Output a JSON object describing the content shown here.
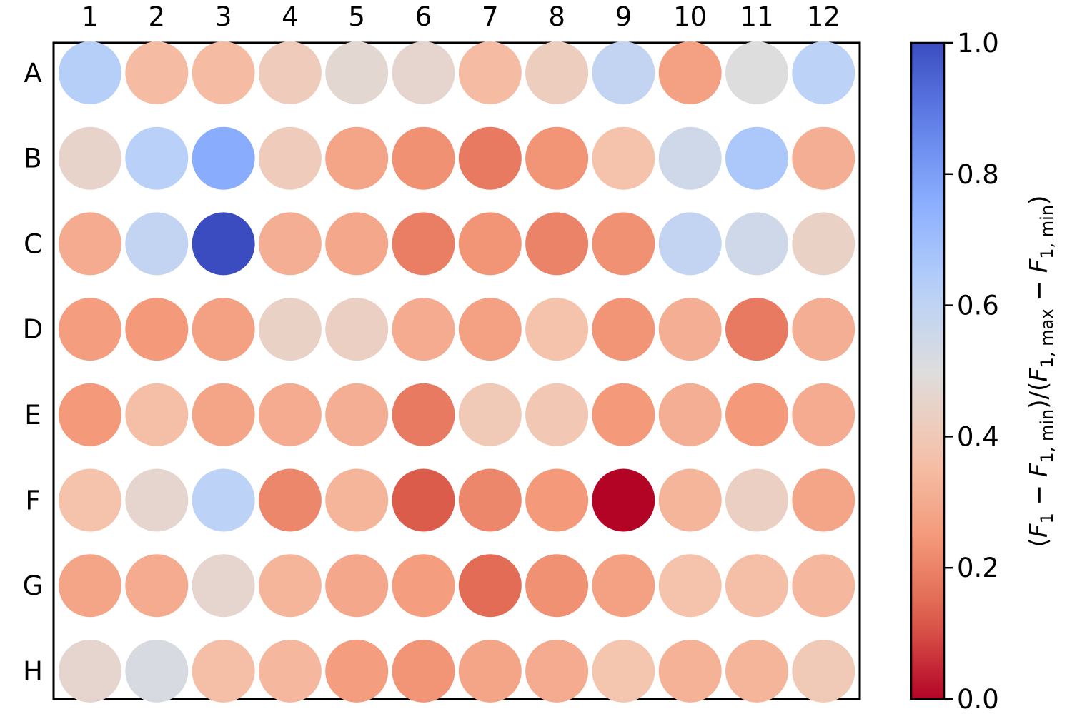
{
  "chart_data": {
    "type": "heatmap",
    "columns": [
      "1",
      "2",
      "3",
      "4",
      "5",
      "6",
      "7",
      "8",
      "9",
      "10",
      "11",
      "12"
    ],
    "rows": [
      "A",
      "B",
      "C",
      "D",
      "E",
      "F",
      "G",
      "H"
    ],
    "values": [
      [
        0.63,
        0.35,
        0.35,
        0.41,
        0.47,
        0.46,
        0.35,
        0.42,
        0.59,
        0.27,
        0.5,
        0.61
      ],
      [
        0.45,
        0.62,
        0.76,
        0.41,
        0.28,
        0.23,
        0.18,
        0.24,
        0.37,
        0.55,
        0.66,
        0.31
      ],
      [
        0.3,
        0.59,
        1.0,
        0.31,
        0.29,
        0.19,
        0.24,
        0.2,
        0.23,
        0.59,
        0.55,
        0.44
      ],
      [
        0.26,
        0.25,
        0.27,
        0.44,
        0.43,
        0.3,
        0.27,
        0.37,
        0.24,
        0.31,
        0.18,
        0.31
      ],
      [
        0.25,
        0.36,
        0.28,
        0.3,
        0.31,
        0.18,
        0.4,
        0.39,
        0.25,
        0.31,
        0.25,
        0.3
      ],
      [
        0.37,
        0.46,
        0.61,
        0.21,
        0.33,
        0.12,
        0.21,
        0.25,
        0.0,
        0.33,
        0.43,
        0.28
      ],
      [
        0.28,
        0.3,
        0.46,
        0.33,
        0.29,
        0.26,
        0.15,
        0.23,
        0.27,
        0.37,
        0.36,
        0.34
      ],
      [
        0.46,
        0.52,
        0.36,
        0.34,
        0.26,
        0.24,
        0.28,
        0.3,
        0.38,
        0.32,
        0.33,
        0.4
      ]
    ],
    "colormap": "coolwarm_r",
    "vmin": 0.0,
    "vmax": 1.0,
    "colorbar": {
      "ticks": [
        0.0,
        0.2,
        0.4,
        0.6,
        0.8,
        1.0
      ],
      "tick_labels": [
        "0.0",
        "0.2",
        "0.4",
        "0.6",
        "0.8",
        "1.0"
      ],
      "label": "(F_1 − F_1,min)/(F_1,max − F_1,min)",
      "label_parts": {
        "open": "(",
        "F": "F",
        "sub1": "1",
        "minus": " − ",
        "sub_min": "1, min",
        "sub_max": "1, max",
        "close": ")",
        "slash": ")/("
      }
    },
    "grid": false,
    "legend": "colorbar-right"
  }
}
